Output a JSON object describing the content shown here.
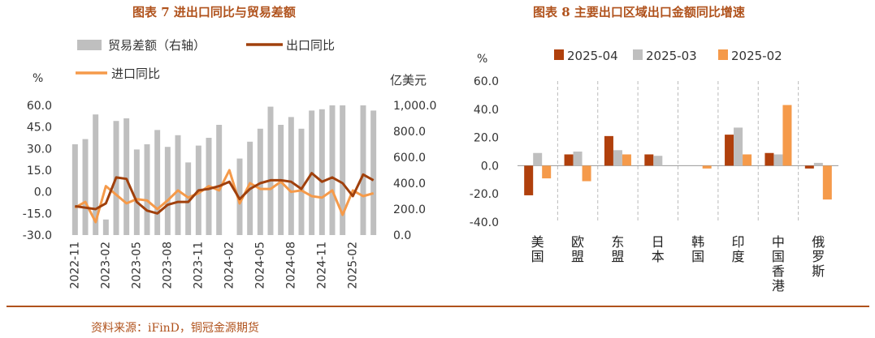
{
  "left_title": "图表 7  进出口同比与贸易差额",
  "right_title": "图表  8  主要出口区域出口金额同比增速",
  "source_text": "资料来源：iFinD，铜冠金源期货",
  "colors": {
    "trade_bar": "#bfbfbf",
    "export_line": "#a0400c",
    "import_line": "#f59a4a",
    "s2025_04": "#b0400c",
    "s2025_03": "#bfbfbf",
    "s2025_02": "#f59a4a",
    "title": "#b0521c"
  },
  "chart_data": [
    {
      "type": "bar+line",
      "legend": [
        "贸易差额（右轴）",
        "出口同比",
        "进口同比"
      ],
      "ylabel_left": "%",
      "ylabel_right": "亿美元",
      "ylim_left": [
        -30,
        60
      ],
      "yticks_left": [
        "60.0",
        "45.0",
        "30.0",
        "15.0",
        "0.0",
        "-15.0",
        "-30.0"
      ],
      "ylim_right": [
        0,
        1000
      ],
      "yticks_right": [
        "1,000.0",
        "800.0",
        "600.0",
        "400.0",
        "200.0",
        "0.0"
      ],
      "x_tick_labels": [
        "2022-11",
        "2023-02",
        "2023-05",
        "2023-08",
        "2023-11",
        "2024-02",
        "2024-05",
        "2024-08",
        "2024-11",
        "2025-02"
      ],
      "x": [
        "2022-11",
        "2022-12",
        "2023-01",
        "2023-02",
        "2023-03",
        "2023-04",
        "2023-05",
        "2023-06",
        "2023-07",
        "2023-08",
        "2023-09",
        "2023-10",
        "2023-11",
        "2023-12",
        "2024-01",
        "2024-02",
        "2024-03",
        "2024-04",
        "2024-05",
        "2024-06",
        "2024-07",
        "2024-08",
        "2024-09",
        "2024-10",
        "2024-11",
        "2024-12",
        "2025-01",
        "2025-02",
        "2025-03",
        "2025-04"
      ],
      "series": [
        {
          "name": "贸易差额（右轴）",
          "kind": "bar",
          "values": [
            700,
            740,
            930,
            120,
            880,
            900,
            660,
            700,
            810,
            680,
            770,
            560,
            690,
            750,
            850,
            0,
            590,
            720,
            820,
            990,
            850,
            910,
            820,
            960,
            970,
            1000,
            1000,
            0,
            1000,
            960
          ]
        },
        {
          "name": "出口同比",
          "kind": "line",
          "values": [
            -10,
            -11,
            -12,
            -8,
            10,
            9,
            -7,
            -13,
            -15,
            -9,
            -7,
            -7,
            1,
            2,
            4,
            7,
            -5,
            2,
            6,
            8,
            8,
            7,
            2,
            13,
            7,
            10,
            6,
            -3,
            12,
            8
          ]
        },
        {
          "name": "进口同比",
          "kind": "line",
          "values": [
            -11,
            -7,
            -21,
            4,
            -2,
            -8,
            -5,
            -6,
            -12,
            -6,
            1,
            -4,
            -1,
            4,
            1,
            15,
            -8,
            6,
            2,
            2,
            7,
            0,
            1,
            -3,
            -4,
            1,
            -16,
            1,
            -3,
            -1
          ]
        }
      ]
    },
    {
      "type": "bar",
      "ylabel": "%",
      "ylim": [
        -40,
        60
      ],
      "yticks": [
        "60.0",
        "40.0",
        "20.0",
        "0.0",
        "-20.0",
        "-40.0"
      ],
      "categories": [
        "美国",
        "欧盟",
        "东盟",
        "日本",
        "韩国",
        "印度",
        "中国香港",
        "俄罗斯"
      ],
      "series": [
        {
          "name": "2025-04",
          "values": [
            -21,
            8,
            21,
            8,
            0,
            22,
            9,
            -2
          ]
        },
        {
          "name": "2025-03",
          "values": [
            9,
            10,
            11,
            7,
            0,
            27,
            8,
            2
          ]
        },
        {
          "name": "2025-02",
          "values": [
            -9,
            -11,
            8,
            0,
            -2,
            8,
            43,
            -24
          ]
        }
      ]
    }
  ]
}
